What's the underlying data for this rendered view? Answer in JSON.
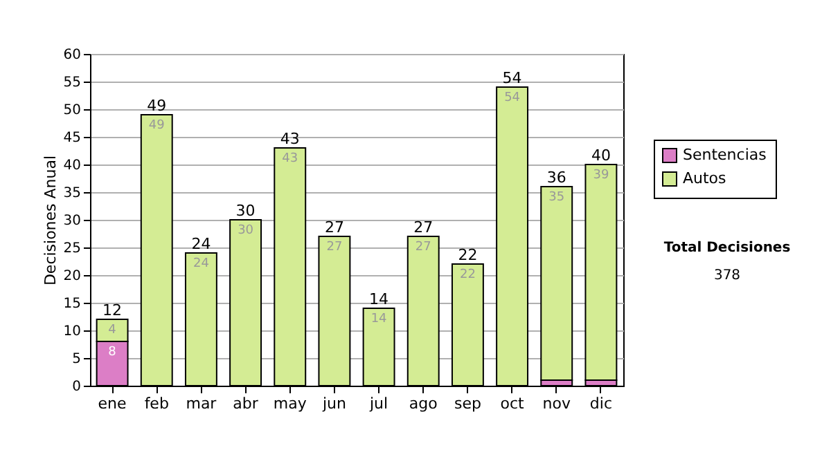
{
  "chart_data": {
    "type": "bar",
    "stacked": true,
    "ylabel": "Decisiones Anual",
    "categories": [
      "ene",
      "feb",
      "mar",
      "abr",
      "may",
      "jun",
      "jul",
      "ago",
      "sep",
      "oct",
      "nov",
      "dic"
    ],
    "series": [
      {
        "name": "Sentencias",
        "color": "#dc7ec6",
        "values": [
          8,
          0,
          0,
          0,
          0,
          0,
          0,
          0,
          0,
          0,
          1,
          1
        ],
        "value_labels": [
          "8",
          null,
          null,
          null,
          null,
          null,
          null,
          null,
          null,
          null,
          null,
          null
        ]
      },
      {
        "name": "Autos",
        "color": "#d4ec94",
        "values": [
          4,
          49,
          24,
          30,
          43,
          27,
          14,
          27,
          22,
          54,
          35,
          39
        ],
        "value_labels": [
          "4",
          "49",
          "24",
          "30",
          "43",
          "27",
          "14",
          "27",
          "22",
          "54",
          "35",
          "39"
        ]
      }
    ],
    "totals": [
      "12",
      "49",
      "24",
      "30",
      "43",
      "27",
      "14",
      "27",
      "22",
      "54",
      "36",
      "40"
    ],
    "ylim": [
      0,
      60
    ],
    "yticks": [
      0,
      5,
      10,
      15,
      20,
      25,
      30,
      35,
      40,
      45,
      50,
      55,
      60
    ],
    "grid": "y",
    "legend": "right",
    "annotations": [
      "Total Decisiones",
      "378"
    ]
  }
}
